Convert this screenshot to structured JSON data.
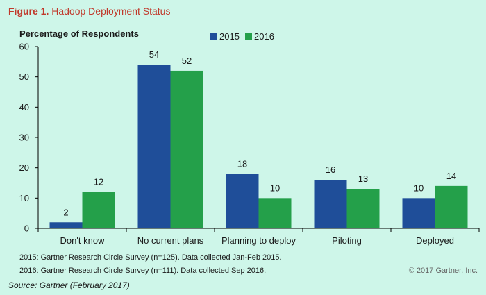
{
  "figure": {
    "label": "Figure 1.",
    "title": "Hadoop Deployment Status"
  },
  "notes": {
    "survey_2015": "2015: Gartner Research Circle Survey (n=125). Data collected Jan-Feb 2015.",
    "survey_2016": "2016: Gartner Research Circle Survey (n=111). Data collected Sep 2016.",
    "copyright": "© 2017 Gartner, Inc.",
    "source": "Source: Gartner (February 2017)"
  },
  "colors": {
    "series_2015": "#1f4e99",
    "series_2016": "#24a04a",
    "axis": "#000000",
    "background": "#cef6e9"
  },
  "chart_data": {
    "type": "bar",
    "ylabel": "Percentage of Respondents",
    "categories": [
      "Don't know",
      "No current plans",
      "Planning to deploy",
      "Piloting",
      "Deployed"
    ],
    "series": [
      {
        "name": "2015",
        "color": "#1f4e99",
        "values": [
          2,
          54,
          18,
          16,
          10
        ]
      },
      {
        "name": "2016",
        "color": "#24a04a",
        "values": [
          12,
          52,
          10,
          13,
          14
        ]
      }
    ],
    "yticks": [
      0,
      10,
      20,
      30,
      40,
      50,
      60
    ],
    "ylim": [
      0,
      60
    ],
    "grid": false,
    "legend": "top-right",
    "data_labels": true
  }
}
